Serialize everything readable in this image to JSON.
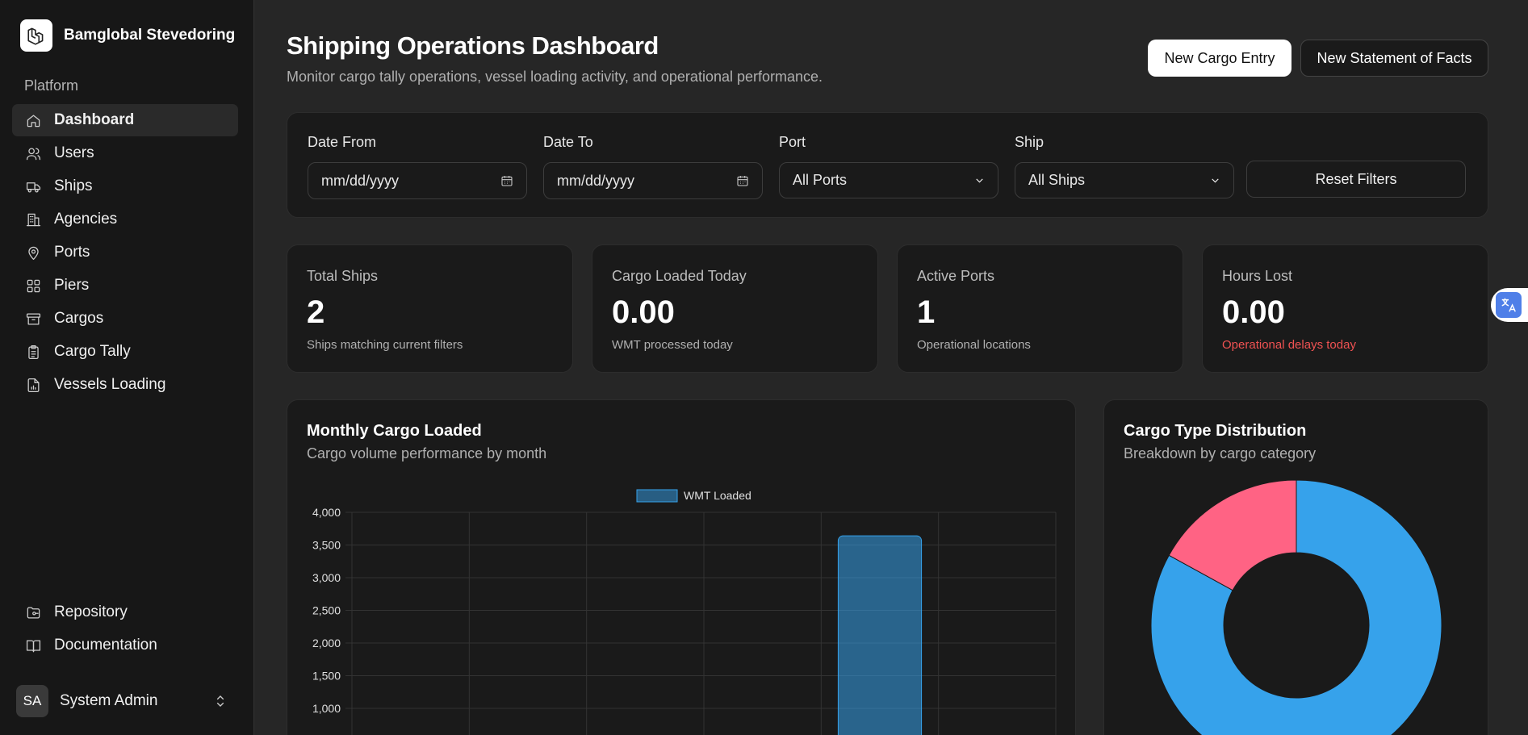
{
  "brand": {
    "name": "Bamglobal Stevedoring"
  },
  "sidebar": {
    "section_label": "Platform",
    "items": [
      {
        "label": "Dashboard",
        "icon": "home-icon"
      },
      {
        "label": "Users",
        "icon": "users-icon"
      },
      {
        "label": "Ships",
        "icon": "truck-icon"
      },
      {
        "label": "Agencies",
        "icon": "building-icon"
      },
      {
        "label": "Ports",
        "icon": "map-pin-icon"
      },
      {
        "label": "Piers",
        "icon": "grid-icon"
      },
      {
        "label": "Cargos",
        "icon": "archive-icon"
      },
      {
        "label": "Cargo Tally",
        "icon": "clipboard-icon"
      },
      {
        "label": "Vessels Loading",
        "icon": "file-chart-icon"
      }
    ],
    "bottom_items": [
      {
        "label": "Repository",
        "icon": "folder-git-icon"
      },
      {
        "label": "Documentation",
        "icon": "book-open-icon"
      }
    ],
    "user": {
      "initials": "SA",
      "name": "System Admin"
    }
  },
  "header": {
    "title": "Shipping Operations Dashboard",
    "subtitle": "Monitor cargo tally operations, vessel loading activity, and operational performance.",
    "primary_button": "New Cargo Entry",
    "secondary_button": "New Statement of Facts"
  },
  "filters": {
    "date_from": {
      "label": "Date From",
      "placeholder": "mm/dd/yyyy"
    },
    "date_to": {
      "label": "Date To",
      "placeholder": "mm/dd/yyyy"
    },
    "port": {
      "label": "Port",
      "value": "All Ports"
    },
    "ship": {
      "label": "Ship",
      "value": "All Ships"
    },
    "reset_label": "Reset Filters"
  },
  "stats": [
    {
      "label": "Total Ships",
      "value": "2",
      "note": "Ships matching current filters"
    },
    {
      "label": "Cargo Loaded Today",
      "value": "0.00",
      "note": "WMT processed today"
    },
    {
      "label": "Active Ports",
      "value": "1",
      "note": "Operational locations"
    },
    {
      "label": "Hours Lost",
      "value": "0.00",
      "note": "Operational delays today"
    }
  ],
  "monthly_card": {
    "title": "Monthly Cargo Loaded",
    "subtitle": "Cargo volume performance by month"
  },
  "donut_card": {
    "title": "Cargo Type Distribution",
    "subtitle": "Breakdown by cargo category"
  },
  "colors": {
    "bar": "#36a2eb",
    "donut_blue": "#36a2eb",
    "donut_red": "#ff6384",
    "alert": "#f05252"
  },
  "chart_data": [
    {
      "type": "bar",
      "legend": [
        "WMT Loaded"
      ],
      "series": [
        {
          "name": "WMT Loaded",
          "values": [
            0,
            0,
            0,
            0,
            3640,
            0
          ]
        }
      ],
      "y_ticks": [
        1000,
        1500,
        2000,
        2500,
        3000,
        3500,
        4000
      ],
      "ylim": [
        0,
        4000
      ],
      "grid": true,
      "legend_position": "top"
    },
    {
      "type": "pie",
      "slices": [
        {
          "share": 0.83,
          "color": "#36a2eb"
        },
        {
          "share": 0.17,
          "color": "#ff6384"
        }
      ]
    }
  ]
}
